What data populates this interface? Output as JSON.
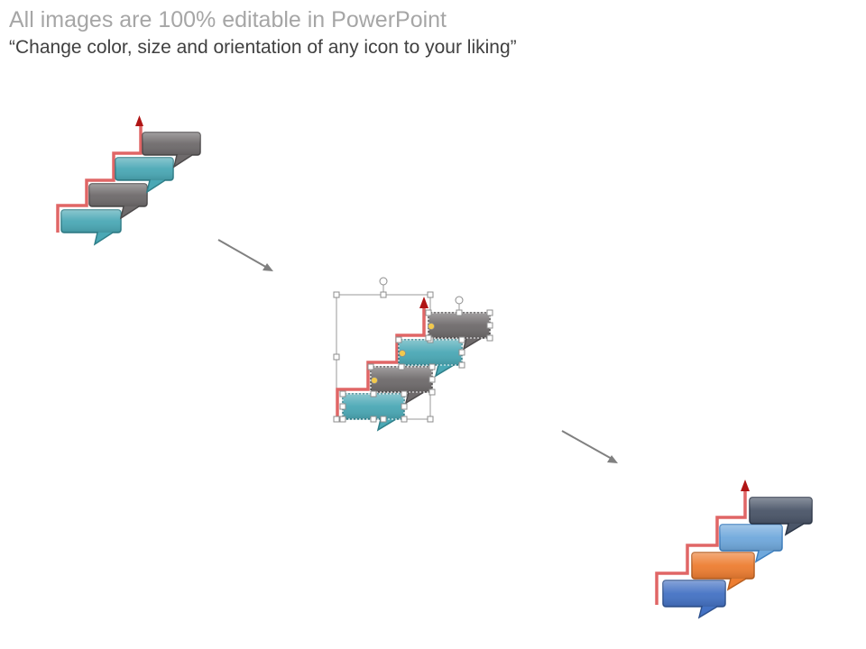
{
  "slide": {
    "title": "All images are 100% editable in PowerPoint",
    "subtitle": "“Change color, size and orientation of any icon to your liking”"
  },
  "colors": {
    "step_line": "#e06666",
    "arrow_head": "#b01515",
    "flow_arrow": "#808080",
    "original_bubbles": [
      "#4aa8b5",
      "#6e6a6b",
      "#4aa8b5",
      "#6e6a6b"
    ],
    "recolored_bubbles": [
      "#4472c4",
      "#ed7d31",
      "#6fa8dc",
      "#4a5568"
    ],
    "selection_handle": "#8c8c8c"
  },
  "illustrations": [
    {
      "name": "original-staircase",
      "state": "default"
    },
    {
      "name": "selected-staircase",
      "state": "selected-with-handles"
    },
    {
      "name": "recolored-staircase",
      "state": "recolored"
    }
  ],
  "flow_arrows": [
    "arrow-to-selected",
    "arrow-to-recolored"
  ]
}
